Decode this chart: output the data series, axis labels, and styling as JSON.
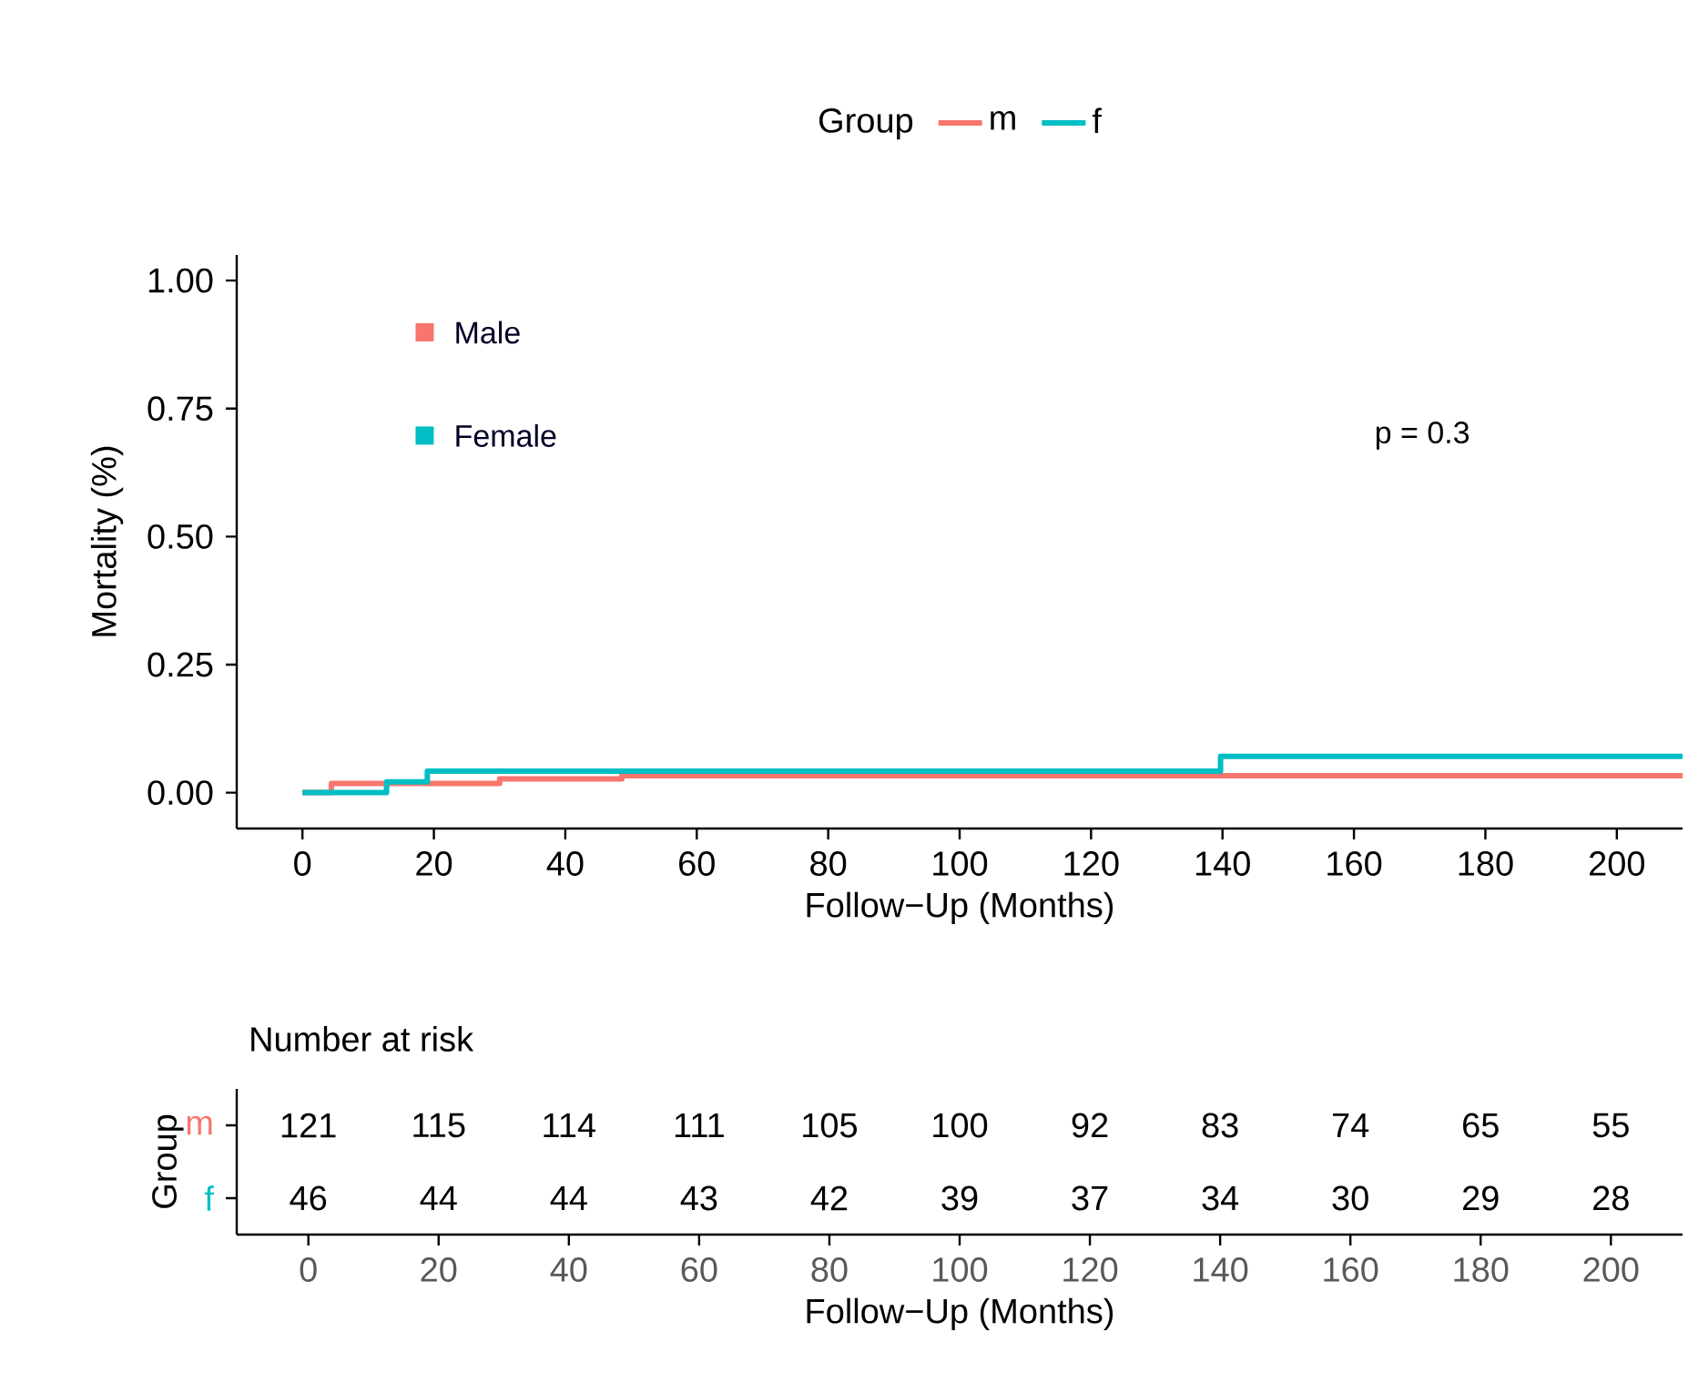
{
  "chart_data": [
    {
      "type": "step",
      "xlabel": "Follow−Up (Months)",
      "ylabel": "Mortality (%)",
      "legend": "top",
      "legend_title": "Group",
      "grid": false,
      "xlim": [
        -10,
        210
      ],
      "xticks": [
        0,
        20,
        40,
        60,
        80,
        100,
        120,
        140,
        160,
        180,
        200
      ],
      "ylim": [
        -0.07,
        1.05
      ],
      "yticks": [
        {
          "value": 0,
          "label": "0.00"
        },
        0.25,
        {
          "value": 0.5,
          "label": "0.50"
        },
        0.75,
        {
          "value": 1,
          "label": "1.00"
        }
      ],
      "annotations": [
        "Male",
        "Female",
        "p = 0.3"
      ],
      "series": [
        {
          "name": "m",
          "color": "#f8766d",
          "x": [
            0,
            4.4,
            30,
            48.6,
            210
          ],
          "values": [
            0,
            0.018,
            0.027,
            0.033,
            0.033
          ]
        },
        {
          "name": "f",
          "color": "#00bfc4",
          "x": [
            0,
            12.8,
            19,
            139.7,
            210
          ],
          "values": [
            0,
            0.021,
            0.042,
            0.071,
            0.071
          ]
        }
      ]
    },
    {
      "type": "heatmap",
      "title": "Number at risk",
      "xlabel": "Follow−Up (Months)",
      "ylabel": "Group",
      "data_labels": true,
      "categories": [
        "0",
        "20",
        "40",
        "60",
        "80",
        "100",
        "120",
        "140",
        "160",
        "180",
        "200"
      ],
      "y_categories": [
        "m",
        "f"
      ],
      "colors": [
        "#f8766d",
        "#00bfc4"
      ],
      "cells": [
        [
          121,
          115,
          114,
          111,
          105,
          100,
          92,
          83,
          74,
          65,
          55
        ],
        [
          46,
          44,
          44,
          43,
          42,
          39,
          37,
          34,
          30,
          29,
          28
        ]
      ]
    }
  ]
}
